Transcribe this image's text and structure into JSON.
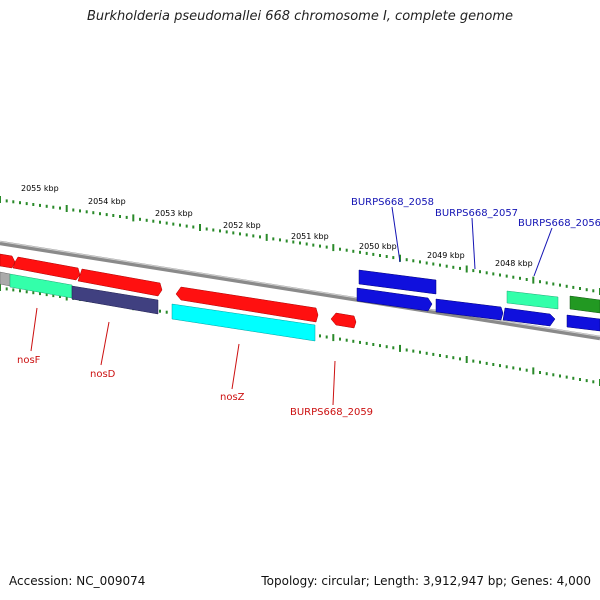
{
  "title": "Burkholderia pseudomallei 668 chromosome I, complete genome",
  "footer": {
    "accession": "Accession: NC_009074",
    "stats": "Topology: circular; Length: 3,912,947 bp; Genes: 4,000"
  },
  "colors": {
    "backbone": "#8a8a8a",
    "ticks": "#2a8a2a",
    "red": "#ff1010",
    "blue": "#1010dd",
    "cyan": "#00ffff",
    "seagreen": "#33ffaa",
    "slate": "#404080",
    "green": "#229922",
    "forward_label": "#1414b4",
    "reverse_label": "#cc1111"
  },
  "scale_labels": [
    "2055 kbp",
    "2054 kbp",
    "2053 kbp",
    "2052 kbp",
    "2051 kbp",
    "2050 kbp",
    "2049 kbp",
    "2048 kbp"
  ],
  "gene_labels": {
    "top": [
      "BURPS668_2058",
      "BURPS668_2057",
      "BURPS668_2056"
    ],
    "bottom": [
      "nosF",
      "nosD",
      "nosZ",
      "BURPS668_2059"
    ]
  }
}
